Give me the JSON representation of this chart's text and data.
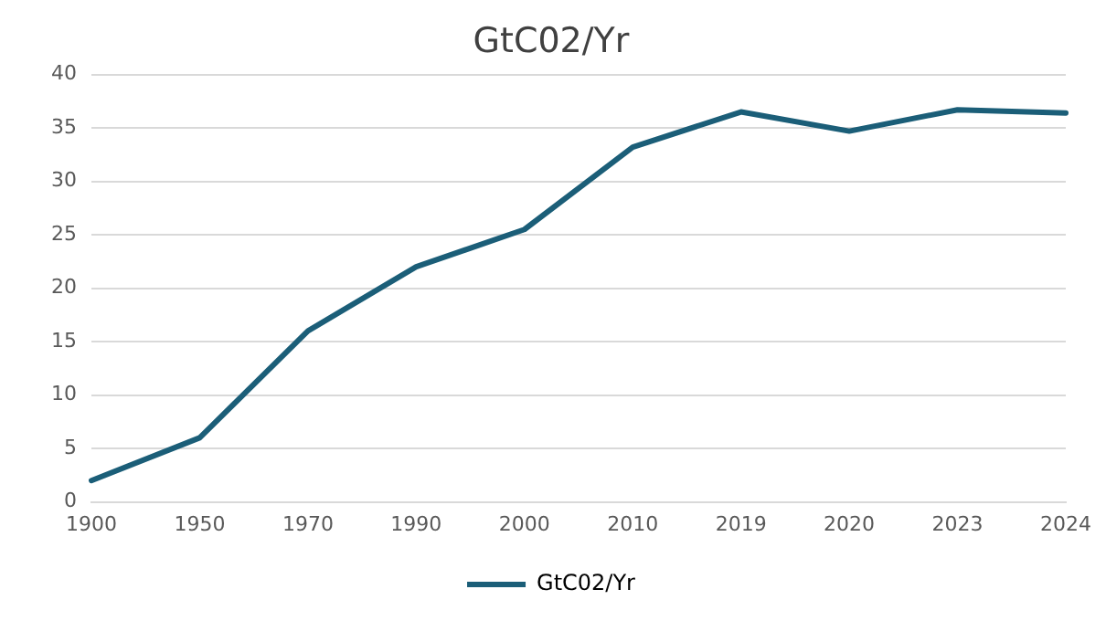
{
  "chart_data": {
    "type": "line",
    "title": "GtC02/Yr",
    "categories": [
      "1900",
      "1950",
      "1970",
      "1990",
      "2000",
      "2010",
      "2019",
      "2020",
      "2023",
      "2024"
    ],
    "series": [
      {
        "name": "GtC02/Yr",
        "color": "#1b5e78",
        "values": [
          2,
          6,
          16,
          22,
          25.5,
          33.2,
          36.5,
          34.7,
          36.7,
          36.4
        ]
      }
    ],
    "ylim": [
      0,
      40
    ],
    "yticks": [
      0,
      5,
      10,
      15,
      20,
      25,
      30,
      35,
      40
    ],
    "grid": "y",
    "legend": "bottom",
    "marker": "none",
    "line_style": "solid"
  }
}
